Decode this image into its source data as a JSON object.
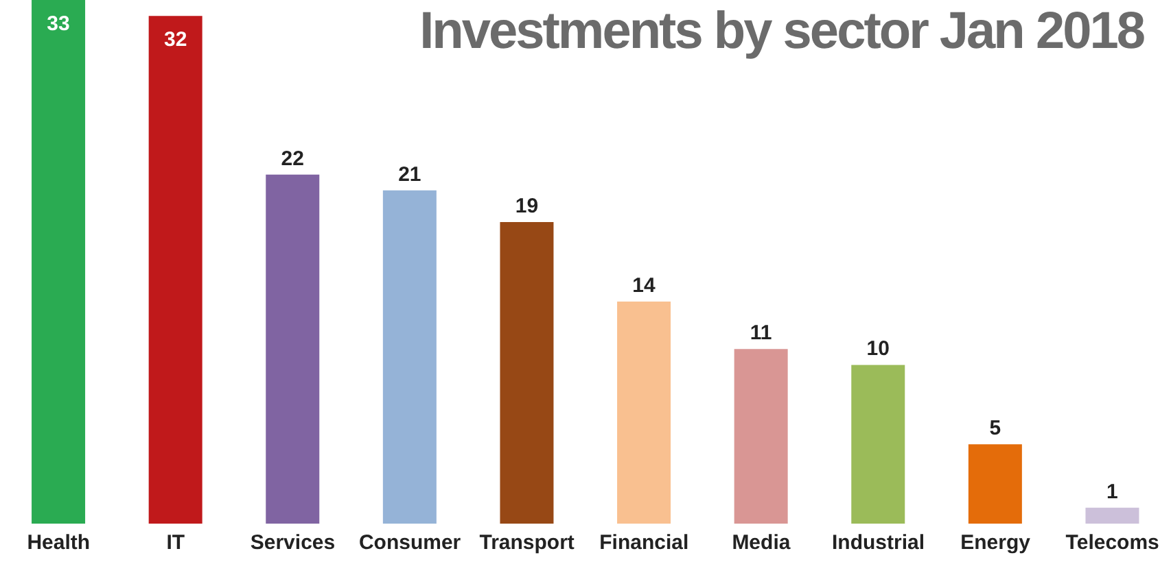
{
  "chart_data": {
    "type": "bar",
    "title": "Investments by sector Jan 2018",
    "categories": [
      "Health",
      "IT",
      "Services",
      "Consumer",
      "Transport",
      "Financial",
      "Media",
      "Industrial",
      "Energy",
      "Telecoms"
    ],
    "values": [
      33,
      32,
      22,
      21,
      19,
      14,
      11,
      10,
      5,
      1
    ],
    "colors": [
      "#2aab52",
      "#c0191b",
      "#8064a2",
      "#95b3d7",
      "#974815",
      "#f9c090",
      "#d99694",
      "#9bbb59",
      "#e46c0a",
      "#ccc0da"
    ],
    "data_labels": true,
    "grid": false,
    "legend": false
  }
}
